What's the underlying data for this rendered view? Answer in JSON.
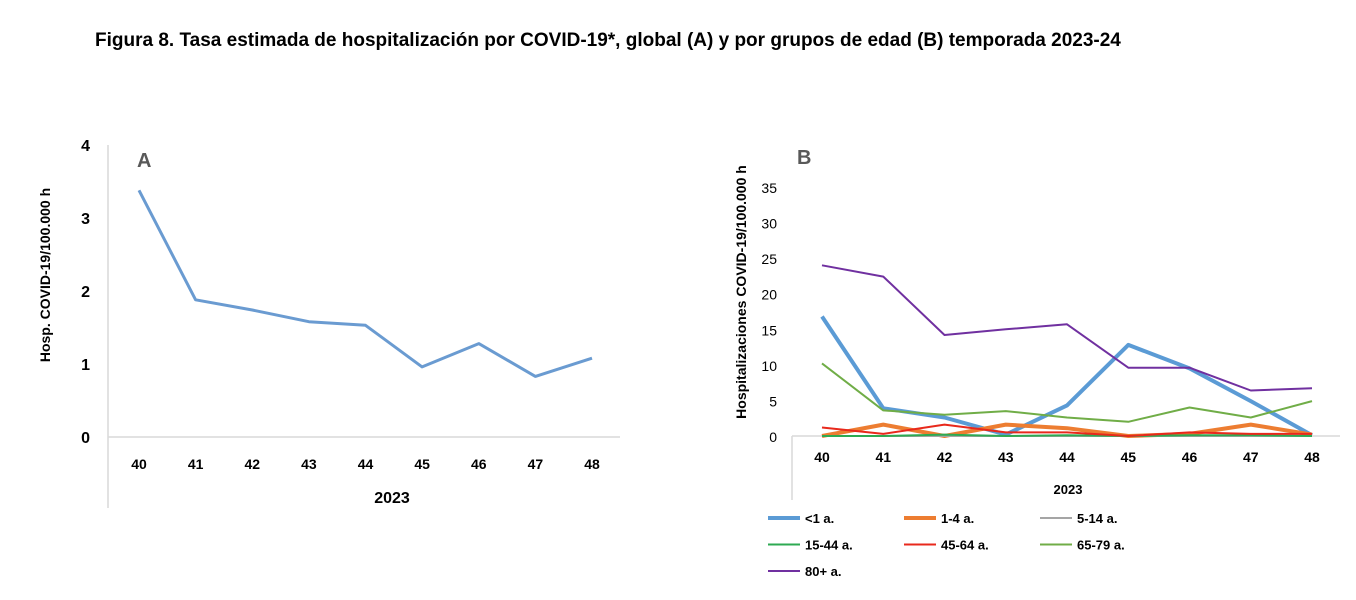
{
  "title": "Figura 8. Tasa estimada de hospitalización por COVID-19*, global (A) y por grupos de edad (B) temporada 2023-24",
  "chart_data": [
    {
      "type": "line",
      "panel_label": "A",
      "xlabel": "2023",
      "ylabel": "Hosp. COVID-19/100.000 h",
      "categories": [
        "40",
        "41",
        "42",
        "43",
        "44",
        "45",
        "46",
        "47",
        "48"
      ],
      "ylim": [
        0,
        4
      ],
      "yticks": [
        0,
        1,
        2,
        3,
        4
      ],
      "grid": false,
      "series": [
        {
          "color": "#6a9bd1",
          "values": [
            3.38,
            1.88,
            1.74,
            1.58,
            1.53,
            0.96,
            1.28,
            0.83,
            1.08
          ]
        }
      ]
    },
    {
      "type": "line",
      "panel_label": "B",
      "xlabel": "2023",
      "ylabel": "Hospitalizaciones  COVID-19/100.000 h",
      "categories": [
        "40",
        "41",
        "42",
        "43",
        "44",
        "45",
        "46",
        "47",
        "48"
      ],
      "ylim": [
        0,
        35
      ],
      "yticks": [
        0,
        5,
        10,
        15,
        20,
        25,
        30,
        35
      ],
      "grid": false,
      "legend_placement": "bottom",
      "series": [
        {
          "name": "<1 a.",
          "color": "#5b9bd5",
          "width": 4,
          "values": [
            16.8,
            3.9,
            2.6,
            0.2,
            4.3,
            12.8,
            9.5,
            4.9,
            0.1
          ]
        },
        {
          "name": "1-4 a.",
          "color": "#ed7d31",
          "width": 4,
          "values": [
            0,
            1.6,
            0,
            1.6,
            1.1,
            0,
            0.3,
            1.6,
            0.2
          ]
        },
        {
          "name": "5-14 a.",
          "color": "#a5a5a5",
          "width": 2,
          "values": [
            0,
            0,
            0,
            0,
            0,
            0,
            0,
            0,
            0
          ]
        },
        {
          "name": "15-44 a.",
          "color": "#2eaa52",
          "width": 2,
          "values": [
            0,
            0,
            0.2,
            0,
            0.1,
            0,
            0.1,
            0.1,
            0
          ]
        },
        {
          "name": "45-64 a.",
          "color": "#e8291c",
          "width": 2,
          "values": [
            1.2,
            0.3,
            1.6,
            0.5,
            0.5,
            0,
            0.5,
            0.3,
            0.3
          ]
        },
        {
          "name": "65-79 a.",
          "color": "#70ad47",
          "width": 2,
          "values": [
            10.2,
            3.6,
            3.0,
            3.5,
            2.6,
            2.0,
            4.0,
            2.6,
            4.9
          ]
        },
        {
          "name": "80+ a.",
          "color": "#7030a0",
          "width": 2,
          "values": [
            24.0,
            22.4,
            14.2,
            15.0,
            15.7,
            9.6,
            9.6,
            6.4,
            6.7
          ]
        }
      ]
    }
  ]
}
